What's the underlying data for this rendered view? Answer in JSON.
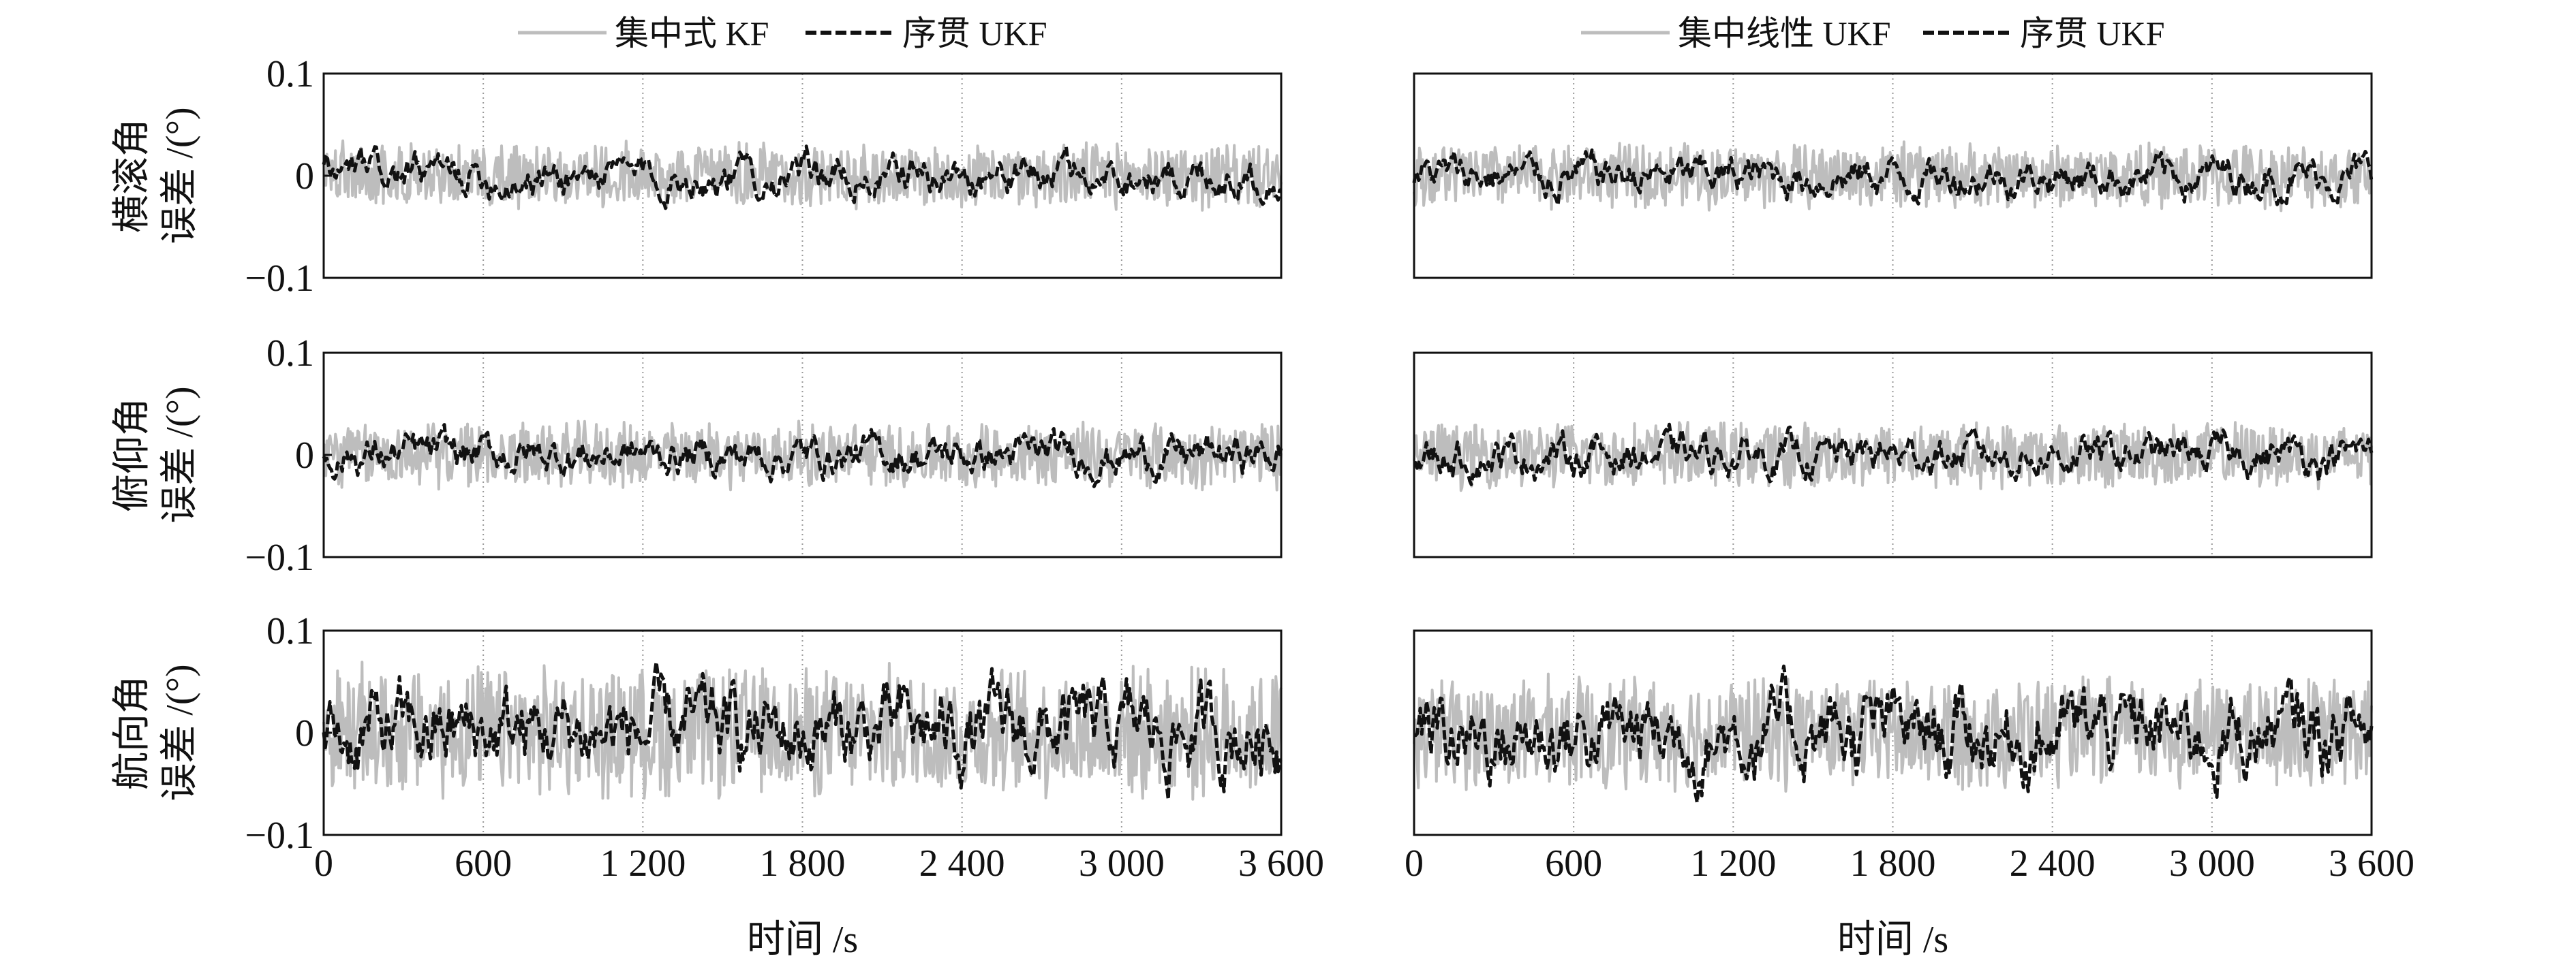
{
  "chart_data": [
    {
      "type": "line",
      "column": 0,
      "row": 0,
      "ylabel": [
        "横滚角",
        "误差 /(°)"
      ],
      "xlim": [
        0,
        3600
      ],
      "ylim": [
        -0.1,
        0.1
      ],
      "xticks": [
        0,
        600,
        1200,
        1800,
        2400,
        3000,
        3600
      ],
      "xtick_labels": [
        "0",
        "600",
        "1 200",
        "1 800",
        "2 400",
        "3 000",
        "3 600"
      ],
      "yticks": [
        0.1,
        0,
        -0.1
      ],
      "ytick_labels": [
        "0.1",
        "0",
        "−0.1"
      ],
      "grid": "vertical dotted",
      "series": [
        {
          "name": "集中式 KF",
          "style": "solid",
          "color": "#bdbdbd",
          "amplitude_approx": 0.035,
          "x_start": 0,
          "x_end": 3600
        },
        {
          "name": "序贯 UKF",
          "style": "dashed",
          "color": "#111111",
          "amplitude_approx": 0.02,
          "x_start": 0,
          "x_end": 3600
        }
      ]
    },
    {
      "type": "line",
      "column": 0,
      "row": 1,
      "ylabel": [
        "俯仰角",
        "误差 /(°)"
      ],
      "xlim": [
        0,
        3600
      ],
      "ylim": [
        -0.1,
        0.1
      ],
      "xticks": [
        0,
        600,
        1200,
        1800,
        2400,
        3000,
        3600
      ],
      "xtick_labels": [
        "0",
        "600",
        "1 200",
        "1 800",
        "2 400",
        "3 000",
        "3 600"
      ],
      "yticks": [
        0.1,
        0,
        -0.1
      ],
      "ytick_labels": [
        "0.1",
        "0",
        "−0.1"
      ],
      "grid": "vertical dotted",
      "series": [
        {
          "name": "集中式 KF",
          "style": "solid",
          "color": "#bdbdbd",
          "amplitude_approx": 0.035,
          "x_start": 0,
          "x_end": 3600
        },
        {
          "name": "序贯 UKF",
          "style": "dashed",
          "color": "#111111",
          "amplitude_approx": 0.02,
          "x_start": 0,
          "x_end": 3600
        }
      ]
    },
    {
      "type": "line",
      "column": 0,
      "row": 2,
      "ylabel": [
        "航向角",
        "误差 /(°)"
      ],
      "xlabel": "时间 /s",
      "xlim": [
        0,
        3600
      ],
      "ylim": [
        -0.1,
        0.1
      ],
      "xticks": [
        0,
        600,
        1200,
        1800,
        2400,
        3000,
        3600
      ],
      "xtick_labels": [
        "0",
        "600",
        "1 200",
        "1 800",
        "2 400",
        "3 000",
        "3 600"
      ],
      "yticks": [
        0.1,
        0,
        -0.1
      ],
      "ytick_labels": [
        "0.1",
        "0",
        "−0.1"
      ],
      "grid": "vertical dotted",
      "series": [
        {
          "name": "集中式 KF",
          "style": "solid",
          "color": "#bdbdbd",
          "amplitude_approx": 0.07,
          "x_start": 0,
          "x_end": 3600
        },
        {
          "name": "序贯 UKF",
          "style": "dashed",
          "color": "#111111",
          "amplitude_approx": 0.045,
          "x_start": 0,
          "x_end": 3600
        }
      ]
    },
    {
      "type": "line",
      "column": 1,
      "row": 0,
      "xlim": [
        0,
        3600
      ],
      "ylim": [
        -0.1,
        0.1
      ],
      "xticks": [
        0,
        600,
        1200,
        1800,
        2400,
        3000,
        3600
      ],
      "xtick_labels": [
        "0",
        "600",
        "1 200",
        "1 800",
        "2 400",
        "3 000",
        "3 600"
      ],
      "grid": "vertical dotted",
      "series": [
        {
          "name": "集中线性 UKF",
          "style": "solid",
          "color": "#bdbdbd",
          "amplitude_approx": 0.035,
          "x_start": 0,
          "x_end": 3600
        },
        {
          "name": "序贯 UKF",
          "style": "dashed",
          "color": "#111111",
          "amplitude_approx": 0.02,
          "x_start": 0,
          "x_end": 3600
        }
      ]
    },
    {
      "type": "line",
      "column": 1,
      "row": 1,
      "xlim": [
        0,
        3600
      ],
      "ylim": [
        -0.1,
        0.1
      ],
      "xticks": [
        0,
        600,
        1200,
        1800,
        2400,
        3000,
        3600
      ],
      "xtick_labels": [
        "0",
        "600",
        "1 200",
        "1 800",
        "2 400",
        "3 000",
        "3 600"
      ],
      "grid": "vertical dotted",
      "series": [
        {
          "name": "集中线性 UKF",
          "style": "solid",
          "color": "#bdbdbd",
          "amplitude_approx": 0.035,
          "x_start": 0,
          "x_end": 3600
        },
        {
          "name": "序贯 UKF",
          "style": "dashed",
          "color": "#111111",
          "amplitude_approx": 0.02,
          "x_start": 0,
          "x_end": 3600
        }
      ]
    },
    {
      "type": "line",
      "column": 1,
      "row": 2,
      "xlabel": "时间 /s",
      "xlim": [
        0,
        3600
      ],
      "ylim": [
        -0.1,
        0.1
      ],
      "xticks": [
        0,
        600,
        1200,
        1800,
        2400,
        3000,
        3600
      ],
      "xtick_labels": [
        "0",
        "600",
        "1 200",
        "1 800",
        "2 400",
        "3 000",
        "3 600"
      ],
      "grid": "vertical dotted",
      "series": [
        {
          "name": "集中线性 UKF",
          "style": "solid",
          "color": "#bdbdbd",
          "amplitude_approx": 0.06,
          "x_start": 0,
          "x_end": 3600
        },
        {
          "name": "序贯 UKF",
          "style": "dashed",
          "color": "#111111",
          "amplitude_approx": 0.045,
          "x_start": 0,
          "x_end": 3600
        }
      ]
    }
  ],
  "legends": [
    {
      "column": 0,
      "items": [
        {
          "label": "集中式 KF",
          "style": "solid"
        },
        {
          "label": "序贯 UKF",
          "style": "dashed"
        }
      ]
    },
    {
      "column": 1,
      "items": [
        {
          "label": "集中线性 UKF",
          "style": "solid"
        },
        {
          "label": "序贯 UKF",
          "style": "dashed"
        }
      ]
    }
  ]
}
